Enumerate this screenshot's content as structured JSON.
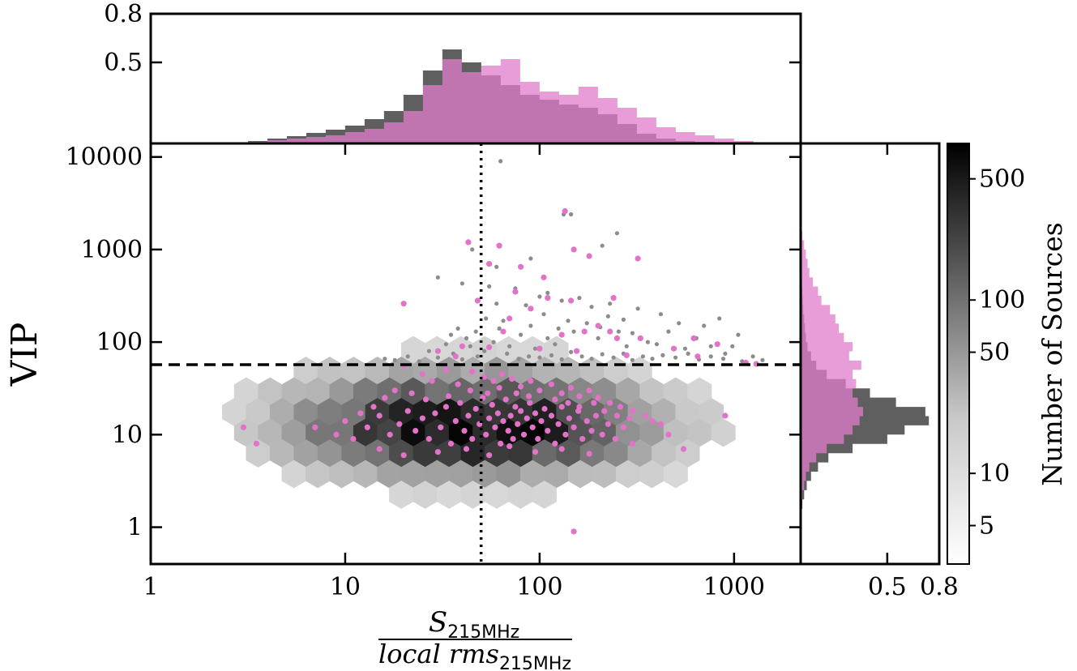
{
  "chart_data": {
    "type": "scatter",
    "colors": {
      "gray_hist": "#5f5f5f",
      "pink": "#e273c9",
      "pink_hist": "#e07ccc",
      "hexbin_light": "#f5f5f5",
      "hexbin_dark": "#000000",
      "gray_points": "#8c8c8c",
      "threshold_line": "#000000"
    },
    "main": {
      "xlabel": {
        "numerator": "S",
        "numerator_sub": "215MHz",
        "denominator": "local rms",
        "denominator_sub": "215MHz"
      },
      "ylabel": "VIP",
      "x_scale": "log",
      "y_scale": "log",
      "xlim": [
        1,
        2200
      ],
      "ylim": [
        0.4,
        14000
      ],
      "x_ticks": [
        {
          "value": 1,
          "label": "1"
        },
        {
          "value": 10,
          "label": "10"
        },
        {
          "value": 100,
          "label": "100"
        },
        {
          "value": 1000,
          "label": "1000"
        }
      ],
      "y_ticks": [
        {
          "value": 1,
          "label": "1"
        },
        {
          "value": 10,
          "label": "10"
        },
        {
          "value": 100,
          "label": "100"
        },
        {
          "value": 1000,
          "label": "1000"
        },
        {
          "value": 10000,
          "label": "10000"
        }
      ],
      "vertical_line_x": 50,
      "horizontal_line_y": 57,
      "hexbin_density": {
        "x_center": 45,
        "y_center": 12,
        "peak_count": 700
      },
      "gray_outliers": [
        [
          63,
          9000
        ],
        [
          133,
          2400
        ],
        [
          145,
          2400
        ],
        [
          250,
          1500
        ],
        [
          210,
          1100
        ],
        [
          45,
          1000
        ],
        [
          90,
          800
        ],
        [
          60,
          650
        ],
        [
          30,
          500
        ],
        [
          40,
          430
        ],
        [
          55,
          400
        ],
        [
          75,
          380
        ],
        [
          110,
          340
        ],
        [
          160,
          300
        ],
        [
          230,
          260
        ],
        [
          320,
          230
        ],
        [
          420,
          200
        ],
        [
          520,
          160
        ],
        [
          700,
          150
        ],
        [
          840,
          180
        ],
        [
          1050,
          120
        ],
        [
          1250,
          70
        ],
        [
          980,
          90
        ],
        [
          640,
          110
        ],
        [
          460,
          130
        ],
        [
          360,
          100
        ],
        [
          280,
          90
        ],
        [
          200,
          110
        ],
        [
          150,
          130
        ],
        [
          120,
          95
        ],
        [
          95,
          85
        ],
        [
          80,
          120
        ],
        [
          70,
          90
        ],
        [
          62,
          140
        ],
        [
          58,
          100
        ],
        [
          52,
          80
        ],
        [
          48,
          70
        ],
        [
          44,
          90
        ],
        [
          40,
          65
        ],
        [
          36,
          75
        ],
        [
          33,
          95
        ],
        [
          30,
          68
        ],
        [
          27,
          80
        ],
        [
          24,
          62
        ],
        [
          21,
          70
        ],
        [
          18,
          64
        ],
        [
          16,
          66
        ],
        [
          68,
          75
        ],
        [
          78,
          66
        ],
        [
          88,
          70
        ],
        [
          100,
          68
        ],
        [
          115,
          72
        ],
        [
          130,
          65
        ],
        [
          145,
          78
        ],
        [
          165,
          70
        ],
        [
          185,
          66
        ],
        [
          210,
          74
        ],
        [
          240,
          68
        ],
        [
          270,
          75
        ],
        [
          300,
          64
        ],
        [
          340,
          70
        ],
        [
          380,
          66
        ],
        [
          430,
          72
        ],
        [
          500,
          68
        ],
        [
          580,
          75
        ],
        [
          660,
          65
        ],
        [
          760,
          70
        ],
        [
          880,
          66
        ],
        [
          1100,
          62
        ],
        [
          1400,
          64
        ],
        [
          90,
          150
        ],
        [
          105,
          200
        ],
        [
          140,
          170
        ],
        [
          175,
          160
        ],
        [
          205,
          145
        ],
        [
          255,
          130
        ],
        [
          300,
          125
        ],
        [
          110,
          110
        ],
        [
          125,
          140
        ],
        [
          65,
          170
        ],
        [
          53,
          180
        ],
        [
          47,
          130
        ],
        [
          42,
          110
        ],
        [
          38,
          140
        ],
        [
          35,
          120
        ],
        [
          60,
          260
        ],
        [
          85,
          250
        ],
        [
          100,
          310
        ],
        [
          130,
          280
        ],
        [
          185,
          240
        ],
        [
          225,
          190
        ],
        [
          270,
          175
        ],
        [
          400,
          95
        ],
        [
          560,
          85
        ],
        [
          760,
          90
        ],
        [
          900,
          75
        ]
      ],
      "pink_points": [
        [
          135,
          2600
        ],
        [
          43,
          1200
        ],
        [
          62,
          1100
        ],
        [
          150,
          1000
        ],
        [
          320,
          800
        ],
        [
          180,
          850
        ],
        [
          55,
          700
        ],
        [
          80,
          650
        ],
        [
          105,
          500
        ],
        [
          75,
          350
        ],
        [
          20,
          260
        ],
        [
          48,
          280
        ],
        [
          110,
          300
        ],
        [
          240,
          300
        ],
        [
          145,
          280
        ],
        [
          90,
          230
        ],
        [
          70,
          180
        ],
        [
          65,
          130
        ],
        [
          130,
          120
        ],
        [
          170,
          130
        ],
        [
          200,
          150
        ],
        [
          230,
          130
        ],
        [
          250,
          110
        ],
        [
          330,
          110
        ],
        [
          490,
          85
        ],
        [
          620,
          110
        ],
        [
          820,
          95
        ],
        [
          40,
          90
        ],
        [
          30,
          80
        ],
        [
          37,
          70
        ],
        [
          55,
          88
        ],
        [
          100,
          85
        ],
        [
          155,
          80
        ],
        [
          280,
          72
        ],
        [
          650,
          70
        ],
        [
          1150,
          60
        ],
        [
          1300,
          58
        ],
        [
          20,
          55
        ],
        [
          25,
          45
        ],
        [
          33,
          50
        ],
        [
          28,
          38
        ],
        [
          38,
          35
        ],
        [
          45,
          48
        ],
        [
          52,
          42
        ],
        [
          58,
          38
        ],
        [
          64,
          45
        ],
        [
          72,
          40
        ],
        [
          80,
          33
        ],
        [
          90,
          38
        ],
        [
          100,
          30
        ],
        [
          115,
          35
        ],
        [
          130,
          28
        ],
        [
          145,
          32
        ],
        [
          160,
          26
        ],
        [
          180,
          30
        ],
        [
          200,
          25
        ],
        [
          230,
          22
        ],
        [
          260,
          20
        ],
        [
          300,
          18
        ],
        [
          350,
          16
        ],
        [
          420,
          13
        ],
        [
          900,
          16
        ],
        [
          10,
          14
        ],
        [
          13,
          12
        ],
        [
          15,
          16
        ],
        [
          17,
          10
        ],
        [
          19,
          13
        ],
        [
          21,
          18
        ],
        [
          23,
          11
        ],
        [
          25,
          15
        ],
        [
          27,
          9
        ],
        [
          29,
          17
        ],
        [
          31,
          12
        ],
        [
          33,
          20
        ],
        [
          35,
          8
        ],
        [
          37,
          14
        ],
        [
          39,
          22
        ],
        [
          41,
          11
        ],
        [
          43,
          16
        ],
        [
          45,
          9
        ],
        [
          47,
          19
        ],
        [
          49,
          13
        ],
        [
          51,
          25
        ],
        [
          53,
          10
        ],
        [
          55,
          15
        ],
        [
          57,
          21
        ],
        [
          59,
          12
        ],
        [
          61,
          17
        ],
        [
          63,
          8
        ],
        [
          65,
          14
        ],
        [
          67,
          24
        ],
        [
          69,
          11
        ],
        [
          71,
          16
        ],
        [
          73,
          9
        ],
        [
          75,
          20
        ],
        [
          77,
          13
        ],
        [
          80,
          18
        ],
        [
          83,
          10
        ],
        [
          86,
          15
        ],
        [
          89,
          22
        ],
        [
          92,
          12
        ],
        [
          95,
          17
        ],
        [
          98,
          9
        ],
        [
          102,
          14
        ],
        [
          106,
          19
        ],
        [
          110,
          11
        ],
        [
          115,
          16
        ],
        [
          120,
          8
        ],
        [
          125,
          13
        ],
        [
          130,
          20
        ],
        [
          136,
          10
        ],
        [
          142,
          15
        ],
        [
          150,
          12
        ],
        [
          158,
          18
        ],
        [
          166,
          9
        ],
        [
          175,
          14
        ],
        [
          185,
          11
        ],
        [
          195,
          16
        ],
        [
          210,
          10
        ],
        [
          225,
          13
        ],
        [
          245,
          9
        ],
        [
          270,
          12
        ],
        [
          300,
          8
        ],
        [
          15,
          7
        ],
        [
          20,
          6
        ],
        [
          30,
          6.5
        ],
        [
          42,
          7
        ],
        [
          55,
          6
        ],
        [
          70,
          7.5
        ],
        [
          95,
          6.5
        ],
        [
          130,
          7
        ],
        [
          180,
          6.2
        ],
        [
          3.5,
          8
        ],
        [
          7,
          12
        ],
        [
          9,
          10
        ],
        [
          11,
          9
        ],
        [
          12,
          17
        ],
        [
          14,
          20
        ],
        [
          16,
          25
        ],
        [
          18,
          30
        ],
        [
          22,
          28
        ],
        [
          26,
          24
        ],
        [
          34,
          26
        ],
        [
          44,
          30
        ],
        [
          54,
          28
        ],
        [
          62,
          32
        ],
        [
          76,
          28
        ],
        [
          88,
          26
        ],
        [
          120,
          24
        ],
        [
          140,
          22
        ],
        [
          160,
          20
        ],
        [
          190,
          22
        ],
        [
          215,
          18
        ],
        [
          250,
          16
        ],
        [
          290,
          15
        ],
        [
          380,
          14
        ],
        [
          460,
          10
        ],
        [
          550,
          7
        ],
        [
          3,
          12
        ],
        [
          150,
          0.9
        ]
      ]
    },
    "top_hist": {
      "ylim": [
        0,
        0.8
      ],
      "y_ticks": [
        {
          "value": 0.5,
          "label": "0.5"
        },
        {
          "value": 0.8,
          "label": "0.8"
        }
      ],
      "bin_edges_log10": [
        0.4,
        0.5,
        0.6,
        0.7,
        0.8,
        0.9,
        1.0,
        1.1,
        1.2,
        1.3,
        1.4,
        1.5,
        1.6,
        1.7,
        1.8,
        1.9,
        2.0,
        2.1,
        2.2,
        2.3,
        2.4,
        2.5,
        2.6,
        2.7,
        2.8,
        2.9,
        3.0,
        3.1,
        3.2
      ],
      "gray_density": [
        0.005,
        0.015,
        0.03,
        0.045,
        0.065,
        0.085,
        0.11,
        0.15,
        0.2,
        0.3,
        0.45,
        0.58,
        0.5,
        0.42,
        0.36,
        0.3,
        0.27,
        0.24,
        0.22,
        0.18,
        0.12,
        0.06,
        0.03,
        0.015,
        0.01,
        0.005,
        0.003,
        0.002
      ],
      "pink_density": [
        0.005,
        0.01,
        0.02,
        0.03,
        0.04,
        0.05,
        0.07,
        0.09,
        0.13,
        0.2,
        0.36,
        0.52,
        0.44,
        0.48,
        0.52,
        0.38,
        0.32,
        0.3,
        0.35,
        0.28,
        0.22,
        0.16,
        0.1,
        0.07,
        0.05,
        0.03,
        0.015,
        0.005
      ]
    },
    "right_hist": {
      "xlim": [
        0,
        0.8
      ],
      "x_ticks": [
        {
          "value": 0.5,
          "label": "0.5"
        },
        {
          "value": 0.8,
          "label": "0.8"
        }
      ],
      "bin_edges_log10": [
        0.0,
        0.1,
        0.2,
        0.3,
        0.4,
        0.5,
        0.6,
        0.7,
        0.8,
        0.9,
        1.0,
        1.1,
        1.2,
        1.3,
        1.4,
        1.5,
        1.6,
        1.7,
        1.8,
        1.9,
        2.0,
        2.1,
        2.2,
        2.3,
        2.4,
        2.5,
        2.6,
        2.7,
        2.8,
        2.9,
        3.0,
        3.1,
        3.2,
        3.3,
        3.4
      ],
      "gray_density": [
        0.003,
        0.005,
        0.01,
        0.02,
        0.035,
        0.06,
        0.1,
        0.16,
        0.3,
        0.5,
        0.6,
        0.74,
        0.72,
        0.55,
        0.4,
        0.26,
        0.15,
        0.09,
        0.06,
        0.04,
        0.03,
        0.025,
        0.02,
        0.015,
        0.012,
        0.01,
        0.008,
        0.006,
        0.005,
        0.004,
        0.003,
        0.002,
        0.002,
        0.001
      ],
      "pink_density": [
        0.0,
        0.0,
        0.005,
        0.01,
        0.02,
        0.03,
        0.05,
        0.09,
        0.15,
        0.25,
        0.3,
        0.34,
        0.36,
        0.33,
        0.3,
        0.32,
        0.3,
        0.35,
        0.28,
        0.3,
        0.25,
        0.22,
        0.2,
        0.17,
        0.12,
        0.1,
        0.07,
        0.05,
        0.04,
        0.03,
        0.02,
        0.01,
        0.005,
        0.002
      ]
    },
    "colorbar": {
      "label": "Number of Sources",
      "scale": "log",
      "range": [
        3,
        800
      ],
      "ticks": [
        {
          "value": 5,
          "label": "5"
        },
        {
          "value": 10,
          "label": "10"
        },
        {
          "value": 50,
          "label": "50"
        },
        {
          "value": 100,
          "label": "100"
        },
        {
          "value": 500,
          "label": "500"
        }
      ]
    }
  }
}
